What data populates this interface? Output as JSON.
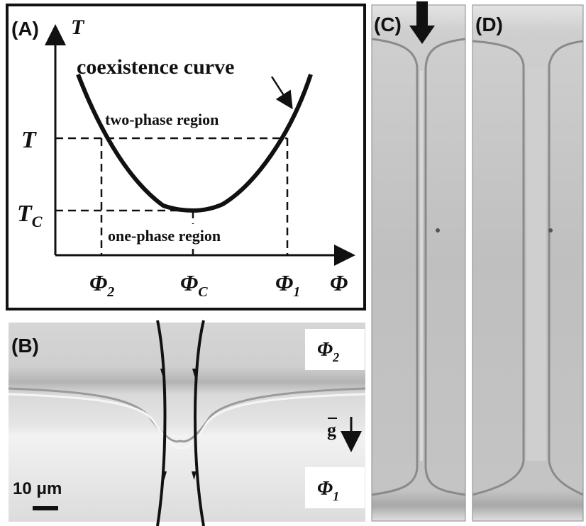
{
  "panel_a": {
    "label": "(A)",
    "y_axis_symbol": "T",
    "x_axis_symbol": "Φ",
    "curve_label": "coexistence curve",
    "upper_region": "two-phase region",
    "lower_region": "one-phase region",
    "tick_t": "T",
    "tick_tc_main": "T",
    "tick_tc_sub": "C",
    "tick_phi2_main": "Φ",
    "tick_phi2_sub": "2",
    "tick_phic_main": "Φ",
    "tick_phic_sub": "C",
    "tick_phi1_main": "Φ",
    "tick_phi1_sub": "1"
  },
  "panel_b": {
    "label": "(B)",
    "phase_top_main": "Φ",
    "phase_top_sub": "2",
    "phase_bottom_main": "Φ",
    "phase_bottom_sub": "1",
    "gravity_symbol": "g",
    "scale_bar": "10 μm"
  },
  "panel_c": {
    "label": "(C)"
  },
  "panel_d": {
    "label": "(D)"
  }
}
